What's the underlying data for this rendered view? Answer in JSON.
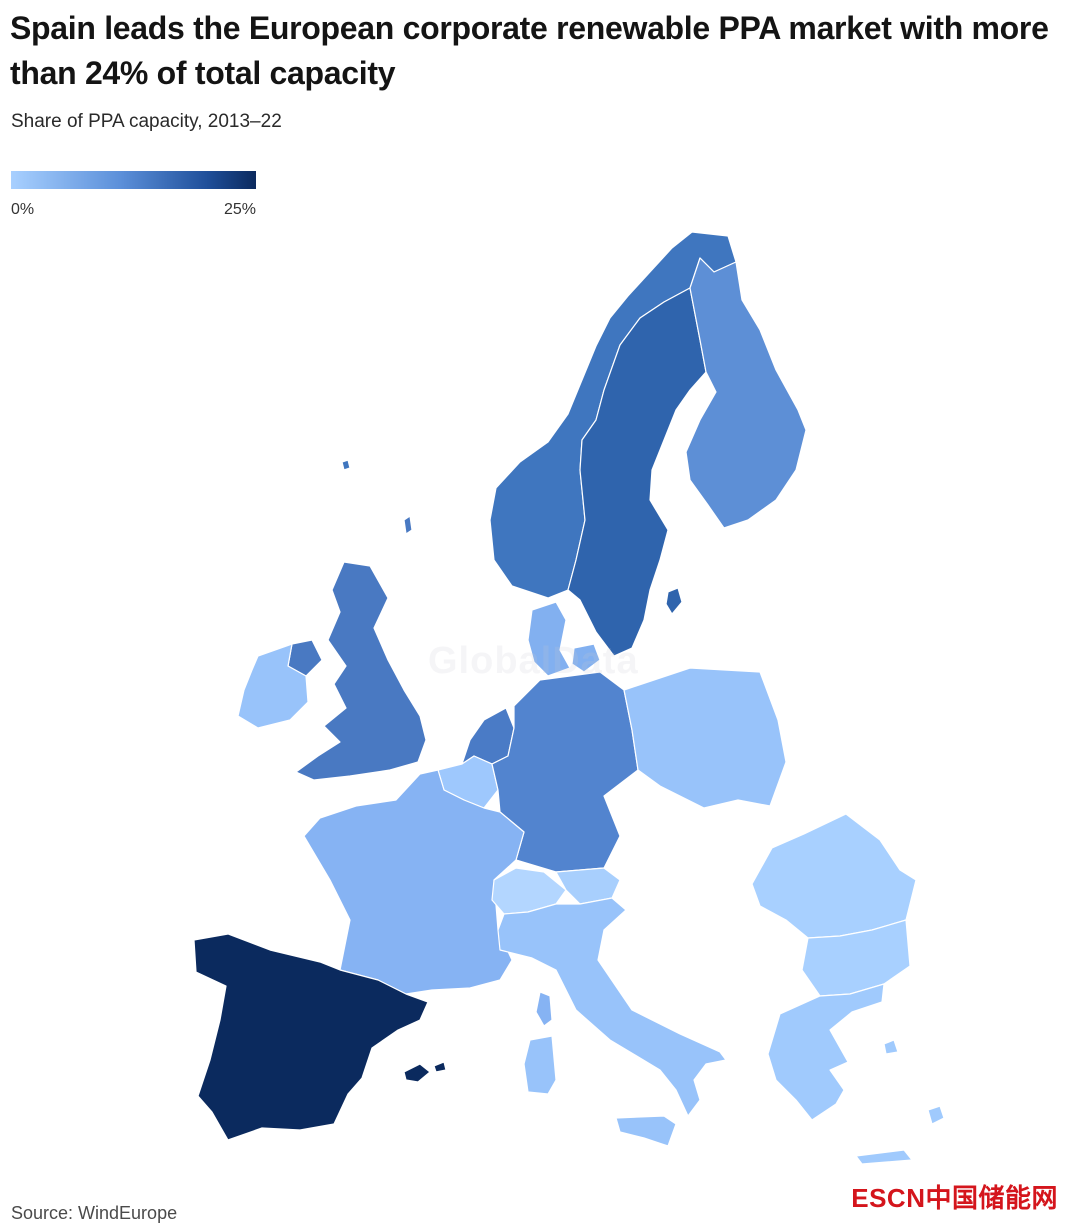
{
  "header": {
    "title": "Spain leads the European corporate renewable PPA market with more than 24% of total capacity",
    "subtitle": "Share of PPA capacity, 2013–22"
  },
  "legend": {
    "min_label": "0%",
    "max_label": "25%",
    "scale": {
      "min": 0,
      "max": 25,
      "unit": "%"
    },
    "colors": [
      "#a8d0ff",
      "#5b8fd9",
      "#1f4f9a",
      "#0b2a5e"
    ]
  },
  "map": {
    "regions": [
      {
        "id": "spain",
        "fill": "#0b2a5e"
      },
      {
        "id": "norway",
        "fill": "#3f76bf"
      },
      {
        "id": "sweden",
        "fill": "#2f64ad"
      },
      {
        "id": "finland",
        "fill": "#5d8fd6"
      },
      {
        "id": "united-kingdom",
        "fill": "#4979c2"
      },
      {
        "id": "ireland",
        "fill": "#98c3fa"
      },
      {
        "id": "northern-ireland",
        "fill": "#4979c2"
      },
      {
        "id": "germany",
        "fill": "#5284cf"
      },
      {
        "id": "netherlands",
        "fill": "#4a7bc6"
      },
      {
        "id": "denmark",
        "fill": "#82b0f0"
      },
      {
        "id": "belgium",
        "fill": "#9ec8fd"
      },
      {
        "id": "france",
        "fill": "#86b3f3"
      },
      {
        "id": "poland",
        "fill": "#98c3fa"
      },
      {
        "id": "italy",
        "fill": "#98c3fa"
      },
      {
        "id": "switzerland",
        "fill": "#b3d6ff"
      },
      {
        "id": "austria",
        "fill": "#a8cffd"
      },
      {
        "id": "romania",
        "fill": "#a8d0ff"
      },
      {
        "id": "bulgaria",
        "fill": "#a8d0ff"
      },
      {
        "id": "greece",
        "fill": "#a0cafd"
      },
      {
        "id": "portugal",
        "fill": "#0b2a5e"
      }
    ]
  },
  "watermark": "GlobalData",
  "footer": {
    "source": "Source: WindEurope",
    "brand": "ESCN中国储能网"
  }
}
